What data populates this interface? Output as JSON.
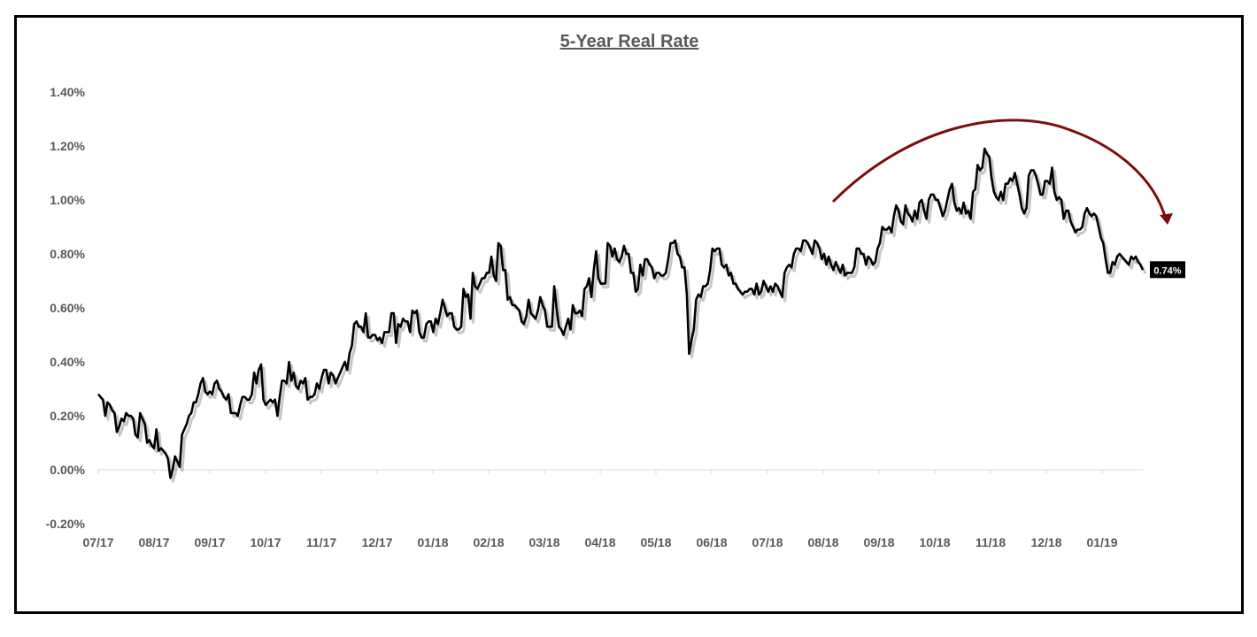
{
  "chart_data": {
    "type": "line",
    "title": "5-Year Real Rate",
    "xlabel": "",
    "ylabel": "",
    "ylim": [
      -0.2,
      1.4
    ],
    "y_ticks": [
      "1.40%",
      "1.20%",
      "1.00%",
      "0.80%",
      "0.60%",
      "0.40%",
      "0.20%",
      "0.00%",
      "-0.20%"
    ],
    "x_ticks": [
      "07/17",
      "08/17",
      "09/17",
      "10/17",
      "11/17",
      "12/17",
      "01/18",
      "02/18",
      "03/18",
      "04/18",
      "05/18",
      "06/18",
      "07/18",
      "08/18",
      "09/18",
      "10/18",
      "11/18",
      "12/18",
      "01/19"
    ],
    "grid": false,
    "line_color": "#000000",
    "annotation_arrow_color": "#7b0d0d",
    "last_value_label": "0.74%",
    "series": [
      {
        "values": [
          0.28,
          0.27,
          0.26,
          0.2,
          0.25,
          0.24,
          0.22,
          0.21,
          0.14,
          0.16,
          0.19,
          0.18,
          0.21,
          0.2,
          0.2,
          0.19,
          0.13,
          0.12,
          0.21,
          0.19,
          0.17,
          0.1,
          0.11,
          0.09,
          0.08,
          0.15,
          0.07,
          0.08,
          0.07,
          0.06,
          0.04,
          -0.03,
          0.0,
          0.05,
          0.03,
          0.01,
          0.13,
          0.15,
          0.17,
          0.2,
          0.21,
          0.25,
          0.25,
          0.28,
          0.32,
          0.34,
          0.29,
          0.28,
          0.29,
          0.28,
          0.32,
          0.33,
          0.3,
          0.29,
          0.27,
          0.26,
          0.28,
          0.21,
          0.21,
          0.21,
          0.2,
          0.24,
          0.27,
          0.27,
          0.26,
          0.26,
          0.28,
          0.36,
          0.32,
          0.37,
          0.39,
          0.26,
          0.24,
          0.25,
          0.26,
          0.25,
          0.26,
          0.2,
          0.27,
          0.33,
          0.33,
          0.32,
          0.4,
          0.33,
          0.36,
          0.31,
          0.3,
          0.33,
          0.32,
          0.34,
          0.26,
          0.27,
          0.27,
          0.28,
          0.32,
          0.3,
          0.34,
          0.37,
          0.37,
          0.32,
          0.36,
          0.35,
          0.32,
          0.34,
          0.36,
          0.38,
          0.4,
          0.37,
          0.43,
          0.46,
          0.54,
          0.55,
          0.53,
          0.53,
          0.51,
          0.58,
          0.49,
          0.49,
          0.5,
          0.5,
          0.48,
          0.49,
          0.47,
          0.51,
          0.51,
          0.51,
          0.58,
          0.58,
          0.47,
          0.54,
          0.53,
          0.56,
          0.55,
          0.55,
          0.51,
          0.59,
          0.58,
          0.59,
          0.51,
          0.49,
          0.49,
          0.54,
          0.55,
          0.55,
          0.51,
          0.56,
          0.54,
          0.58,
          0.63,
          0.6,
          0.57,
          0.58,
          0.58,
          0.53,
          0.52,
          0.52,
          0.53,
          0.67,
          0.64,
          0.65,
          0.56,
          0.73,
          0.68,
          0.67,
          0.69,
          0.71,
          0.71,
          0.73,
          0.73,
          0.79,
          0.72,
          0.7,
          0.84,
          0.83,
          0.74,
          0.74,
          0.63,
          0.64,
          0.61,
          0.61,
          0.6,
          0.59,
          0.55,
          0.54,
          0.57,
          0.63,
          0.58,
          0.57,
          0.56,
          0.59,
          0.64,
          0.61,
          0.59,
          0.53,
          0.53,
          0.53,
          0.68,
          0.6,
          0.53,
          0.52,
          0.5,
          0.53,
          0.56,
          0.52,
          0.61,
          0.58,
          0.58,
          0.59,
          0.57,
          0.67,
          0.68,
          0.71,
          0.64,
          0.74,
          0.81,
          0.71,
          0.69,
          0.69,
          0.69,
          0.84,
          0.83,
          0.79,
          0.82,
          0.78,
          0.77,
          0.79,
          0.83,
          0.8,
          0.8,
          0.73,
          0.73,
          0.66,
          0.67,
          0.76,
          0.72,
          0.78,
          0.78,
          0.76,
          0.75,
          0.71,
          0.73,
          0.73,
          0.72,
          0.72,
          0.73,
          0.78,
          0.84,
          0.84,
          0.85,
          0.8,
          0.79,
          0.75,
          0.75,
          0.65,
          0.43,
          0.48,
          0.52,
          0.63,
          0.65,
          0.64,
          0.68,
          0.68,
          0.69,
          0.74,
          0.82,
          0.81,
          0.82,
          0.82,
          0.76,
          0.75,
          0.76,
          0.72,
          0.73,
          0.69,
          0.69,
          0.67,
          0.66,
          0.65,
          0.66,
          0.66,
          0.67,
          0.67,
          0.65,
          0.69,
          0.65,
          0.66,
          0.7,
          0.68,
          0.66,
          0.68,
          0.66,
          0.69,
          0.68,
          0.66,
          0.64,
          0.73,
          0.75,
          0.76,
          0.75,
          0.8,
          0.82,
          0.82,
          0.81,
          0.85,
          0.85,
          0.84,
          0.82,
          0.8,
          0.85,
          0.84,
          0.82,
          0.78,
          0.8,
          0.76,
          0.79,
          0.76,
          0.74,
          0.77,
          0.75,
          0.73,
          0.76,
          0.72,
          0.73,
          0.73,
          0.73,
          0.75,
          0.82,
          0.82,
          0.8,
          0.8,
          0.76,
          0.79,
          0.78,
          0.76,
          0.77,
          0.82,
          0.84,
          0.9,
          0.89,
          0.89,
          0.9,
          0.88,
          0.94,
          0.98,
          0.96,
          0.92,
          0.91,
          0.98,
          0.95,
          0.94,
          0.92,
          0.96,
          0.93,
          0.99,
          1.0,
          0.96,
          0.93,
          1.0,
          1.02,
          1.02,
          1.0,
          1.0,
          0.97,
          0.94,
          0.96,
          1.0,
          1.04,
          1.06,
          0.99,
          0.96,
          0.97,
          0.95,
          0.99,
          0.95,
          0.96,
          0.93,
          1.03,
          1.04,
          1.13,
          1.11,
          1.12,
          1.19,
          1.17,
          1.16,
          1.08,
          1.03,
          1.01,
          1.0,
          1.03,
          1.0,
          1.06,
          1.06,
          1.08,
          1.07,
          1.1,
          1.06,
          1.02,
          0.97,
          0.95,
          0.97,
          1.09,
          1.11,
          1.11,
          1.09,
          1.06,
          1.02,
          1.02,
          1.07,
          1.07,
          1.06,
          1.12,
          1.03,
          1.0,
          1.01,
          1.0,
          0.93,
          0.96,
          0.96,
          0.92,
          0.9,
          0.88,
          0.89,
          0.89,
          0.9,
          0.95,
          0.97,
          0.95,
          0.94,
          0.95,
          0.94,
          0.9,
          0.86,
          0.84,
          0.78,
          0.73,
          0.73,
          0.77,
          0.76,
          0.79,
          0.8,
          0.79,
          0.78,
          0.77,
          0.76,
          0.79,
          0.78,
          0.79,
          0.77,
          0.76,
          0.74
        ]
      }
    ]
  }
}
